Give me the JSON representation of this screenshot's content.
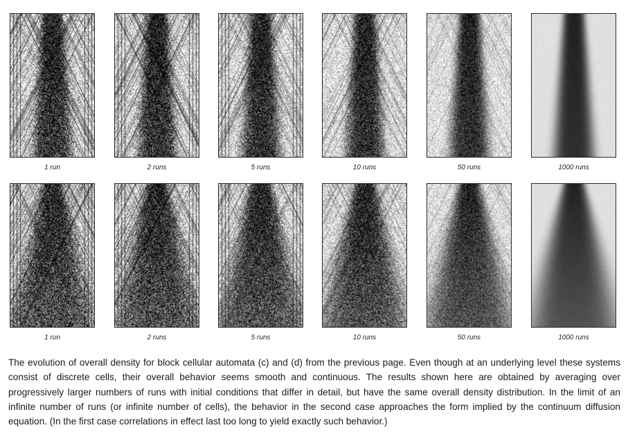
{
  "rows": [
    {
      "name": "row-c",
      "spread": 0.12,
      "panels": [
        {
          "runs": 1,
          "label": "1 run"
        },
        {
          "runs": 2,
          "label": "2 runs"
        },
        {
          "runs": 5,
          "label": "5 runs"
        },
        {
          "runs": 10,
          "label": "10 runs"
        },
        {
          "runs": 50,
          "label": "50 runs"
        },
        {
          "runs": 1000,
          "label": "1000 runs"
        }
      ]
    },
    {
      "name": "row-d",
      "spread": 0.42,
      "panels": [
        {
          "runs": 1,
          "label": "1 run"
        },
        {
          "runs": 2,
          "label": "2 runs"
        },
        {
          "runs": 5,
          "label": "5 runs"
        },
        {
          "runs": 10,
          "label": "10 runs"
        },
        {
          "runs": 50,
          "label": "50 runs"
        },
        {
          "runs": 1000,
          "label": "1000 runs"
        }
      ]
    }
  ],
  "caption": "The evolution of overall density for block cellular automata (c) and (d) from the previous page. Even though at an underlying level these systems consist of discrete cells, their overall behavior seems smooth and continuous. The results shown here are obtained by averaging over progressively larger numbers of runs with initial conditions that differ in detail, but have the same overall density distribution. In the limit of an infinite number of runs (or infinite number of cells), the behavior in the second case approaches the form implied by the continuum diffusion equation. (In the first case correlations in effect last too long to yield exactly such behavior.)"
}
